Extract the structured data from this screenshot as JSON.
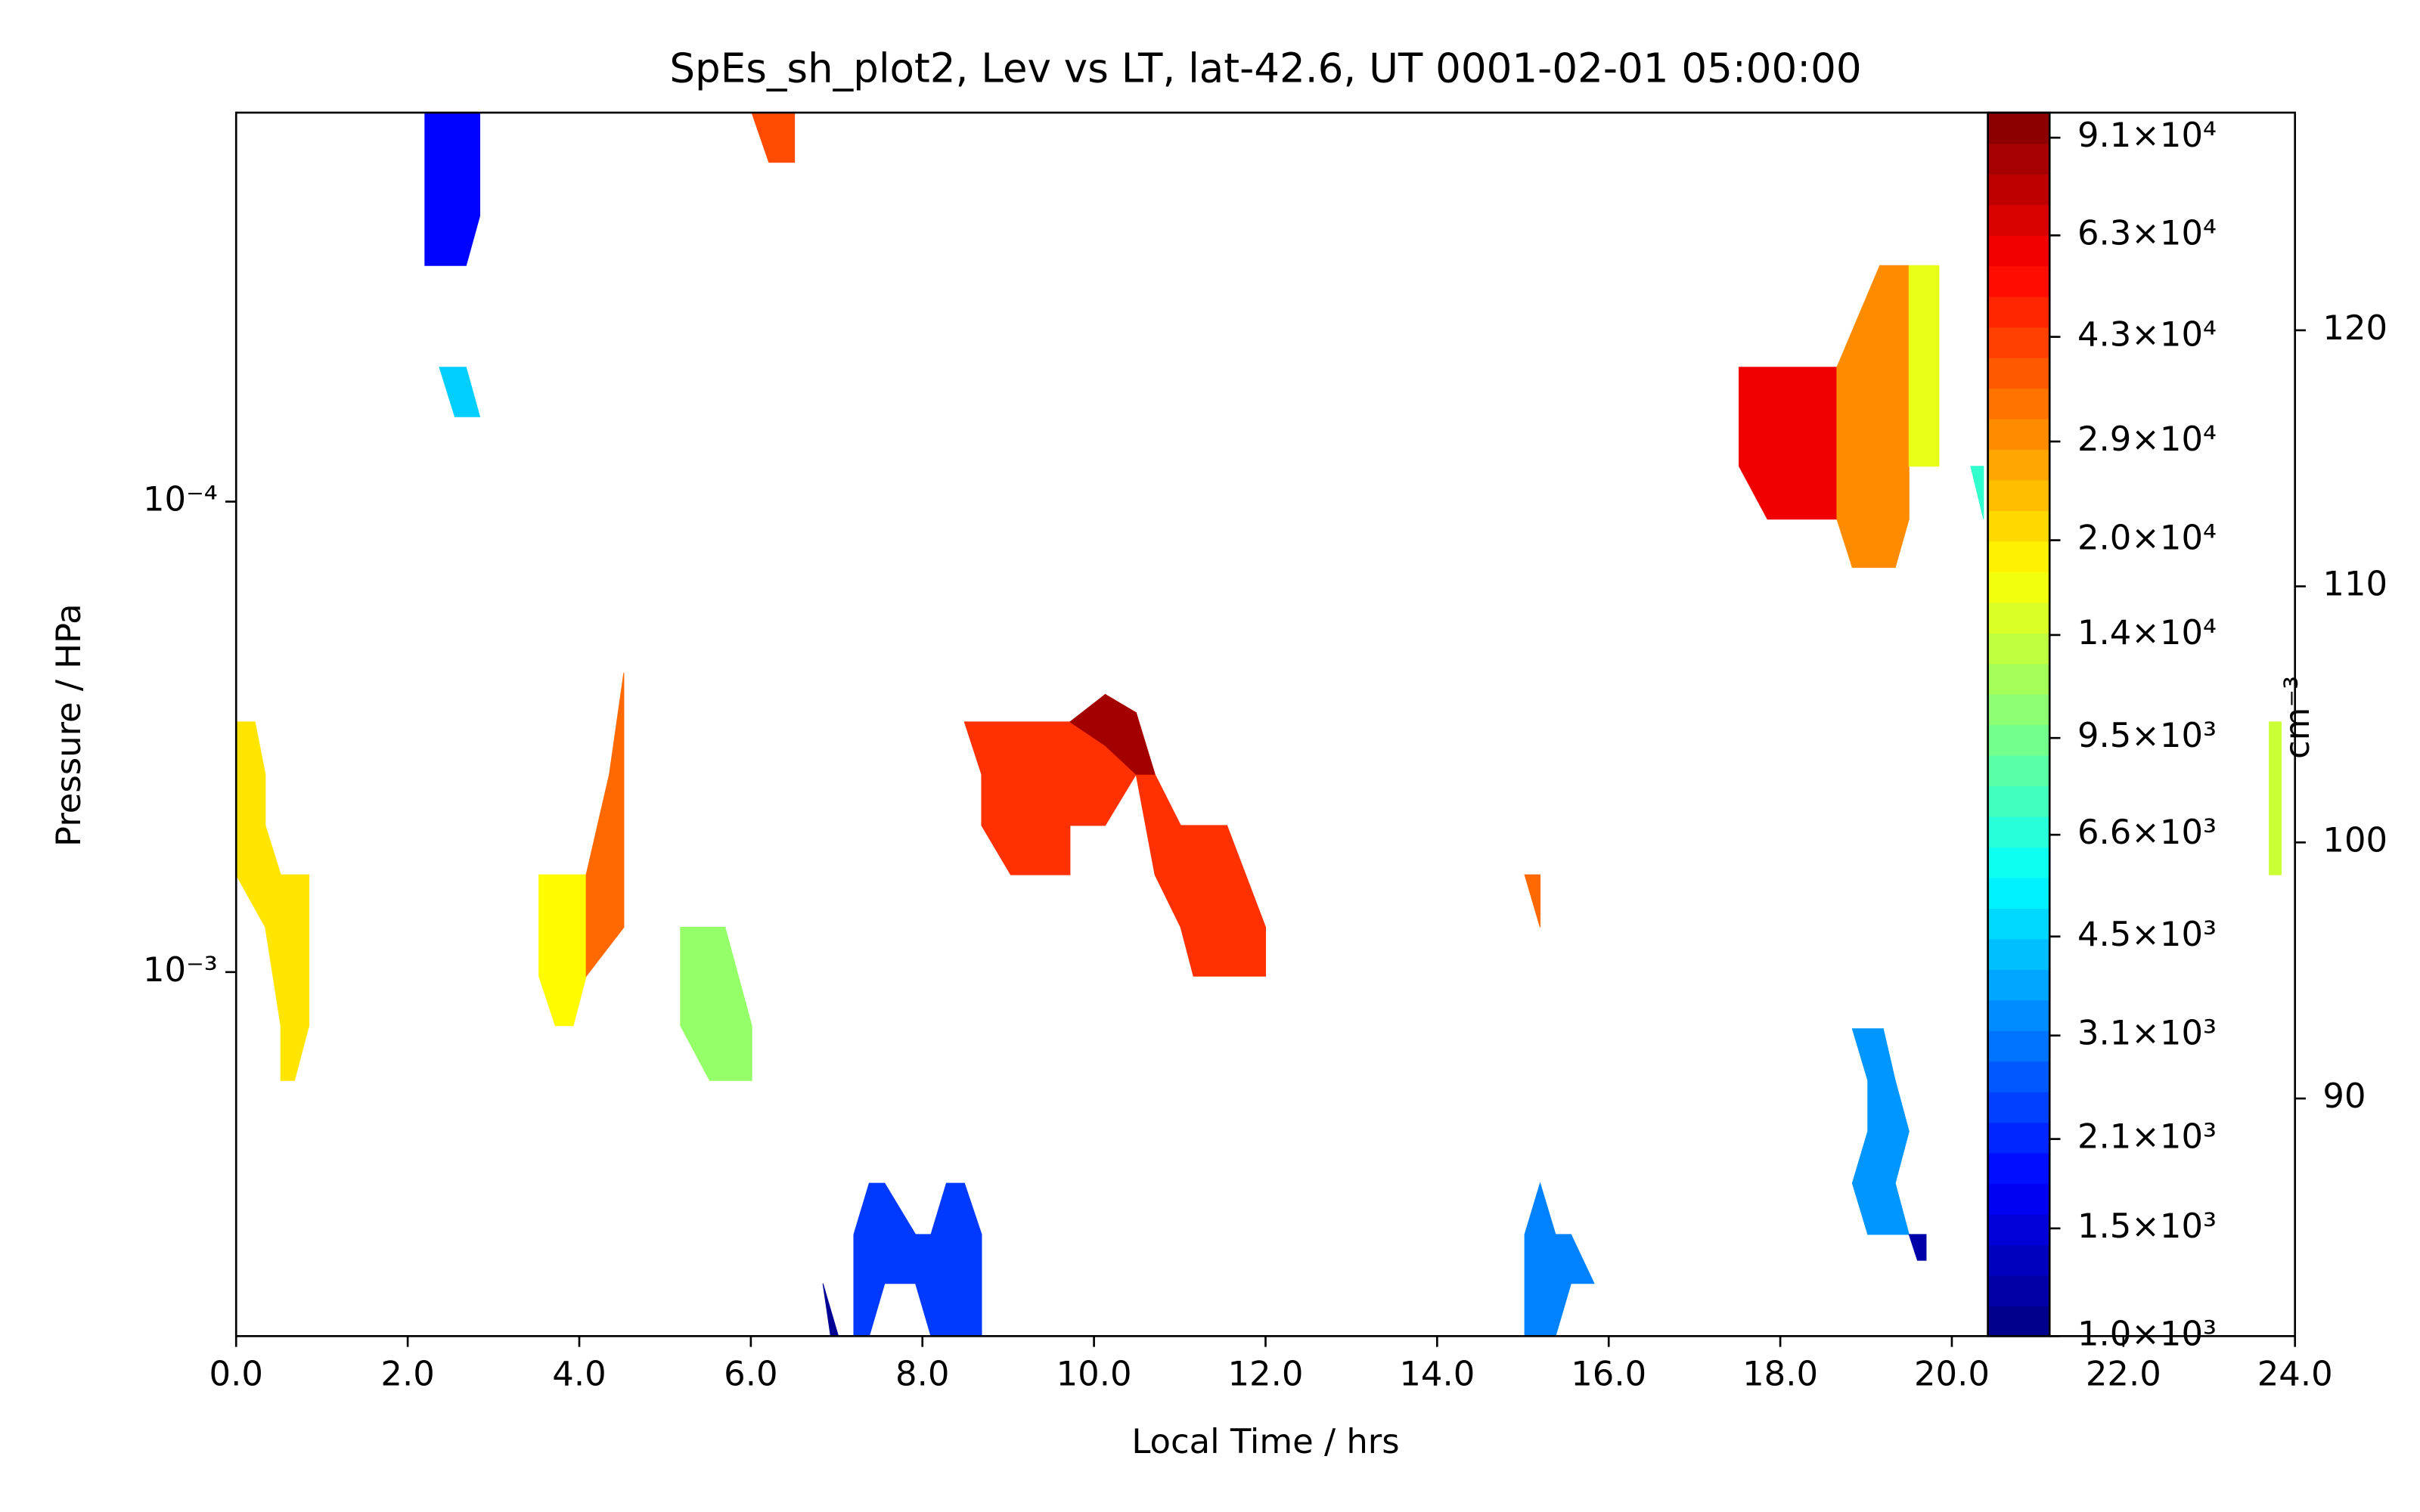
{
  "chart_data": {
    "type": "contour",
    "title": "SpEs_sh_plot2, Lev vs LT, lat-42.6, UT 0001-02-01 05:00:00",
    "xlabel": "Local Time / hrs",
    "ylabel": "Pressure / HPa",
    "colorbar_label": "cm⁻³",
    "xlim": [
      0,
      24
    ],
    "xticks": [
      {
        "value": 0,
        "label": "0.0"
      },
      {
        "value": 2,
        "label": "2.0"
      },
      {
        "value": 4,
        "label": "4.0"
      },
      {
        "value": 6,
        "label": "6.0"
      },
      {
        "value": 8,
        "label": "8.0"
      },
      {
        "value": 10,
        "label": "10.0"
      },
      {
        "value": 12,
        "label": "12.0"
      },
      {
        "value": 14,
        "label": "14.0"
      },
      {
        "value": 16,
        "label": "16.0"
      },
      {
        "value": 18,
        "label": "18.0"
      },
      {
        "value": 20,
        "label": "20.0"
      },
      {
        "value": 22,
        "label": "22.0"
      },
      {
        "value": 24,
        "label": "24.0"
      }
    ],
    "ylim": [
      0.00594,
      1.49e-05
    ],
    "log_y": true,
    "yticks": [
      {
        "value": 0.0001,
        "label": "10⁻⁴"
      },
      {
        "value": 0.001,
        "label": "10⁻³"
      }
    ],
    "y2lim": [
      80.72,
      128.5
    ],
    "y2ticks": [
      90,
      100,
      110,
      120
    ],
    "clim": [
      1000,
      100000
    ],
    "colormap": "jet",
    "cticks": [
      {
        "value": 1000,
        "label": "1.0×10³"
      },
      {
        "value": 1500,
        "label": "1.5×10³"
      },
      {
        "value": 2100,
        "label": "2.1×10³"
      },
      {
        "value": 3100,
        "label": "3.1×10³"
      },
      {
        "value": 4500,
        "label": "4.5×10³"
      },
      {
        "value": 6600,
        "label": "6.6×10³"
      },
      {
        "value": 9500,
        "label": "9.5×10³"
      },
      {
        "value": 14000,
        "label": "1.4×10⁴"
      },
      {
        "value": 20000,
        "label": "2.0×10⁴"
      },
      {
        "value": 29000,
        "label": "2.9×10⁴"
      },
      {
        "value": 43000,
        "label": "4.3×10⁴"
      },
      {
        "value": 63000,
        "label": "6.3×10⁴"
      },
      {
        "value": 91000,
        "label": "9.1×10⁴"
      }
    ],
    "regions": [
      {
        "value": 1800,
        "points": [
          [
            2.2,
            1.49e-05
          ],
          [
            2.84,
            1.49e-05
          ],
          [
            2.84,
            2.47e-05
          ],
          [
            2.68,
            3.15e-05
          ],
          [
            2.2,
            3.15e-05
          ]
        ]
      },
      {
        "value": 40000,
        "points": [
          [
            6.01,
            1.49e-05
          ],
          [
            6.51,
            1.49e-05
          ],
          [
            6.51,
            1.9e-05
          ],
          [
            6.21,
            1.9e-05
          ]
        ]
      },
      {
        "value": 4500,
        "points": [
          [
            2.37,
            5.18e-05
          ],
          [
            2.68,
            5.18e-05
          ],
          [
            2.84,
            6.6e-05
          ],
          [
            2.55,
            6.6e-05
          ]
        ]
      },
      {
        "value": 60000,
        "points": [
          [
            17.52,
            5.18e-05
          ],
          [
            18.66,
            5.18e-05
          ],
          [
            18.66,
            0.000109
          ],
          [
            17.85,
            0.000109
          ],
          [
            17.52,
            8.41e-05
          ]
        ]
      },
      {
        "value": 30000,
        "points": [
          [
            18.66,
            5.18e-05
          ],
          [
            19.16,
            3.15e-05
          ],
          [
            19.5,
            3.15e-05
          ],
          [
            19.5,
            0.000109
          ],
          [
            19.34,
            0.000138
          ],
          [
            18.84,
            0.000138
          ],
          [
            18.66,
            0.000109
          ]
        ]
      },
      {
        "value": 16000,
        "points": [
          [
            19.5,
            3.15e-05
          ],
          [
            19.85,
            3.15e-05
          ],
          [
            19.85,
            8.41e-05
          ],
          [
            19.5,
            8.41e-05
          ]
        ]
      },
      {
        "value": 7000,
        "points": [
          [
            20.22,
            8.41e-05
          ],
          [
            20.37,
            8.41e-05
          ],
          [
            20.37,
            0.000109
          ]
        ]
      },
      {
        "value": 20000,
        "points": [
          [
            0,
            0.000294
          ],
          [
            0.22,
            0.000294
          ],
          [
            0.34,
            0.00038
          ],
          [
            0.34,
            0.000488
          ],
          [
            0.52,
            0.000621
          ],
          [
            0.85,
            0.000621
          ],
          [
            0.85,
            0.0013
          ],
          [
            0.68,
            0.0017
          ],
          [
            0.52,
            0.0017
          ],
          [
            0.52,
            0.0013
          ],
          [
            0.34,
            0.000803
          ],
          [
            0,
            0.000621
          ]
        ]
      },
      {
        "value": 18000,
        "points": [
          [
            3.53,
            0.000621
          ],
          [
            4.08,
            0.000621
          ],
          [
            4.08,
            0.00102
          ],
          [
            3.93,
            0.0013
          ],
          [
            3.72,
            0.0013
          ],
          [
            3.53,
            0.00102
          ]
        ]
      },
      {
        "value": 35000,
        "points": [
          [
            4.08,
            0.000621
          ],
          [
            4.35,
            0.00038
          ],
          [
            4.52,
            0.000231
          ],
          [
            4.52,
            0.000803
          ],
          [
            4.08,
            0.00102
          ]
        ]
      },
      {
        "value": 11000,
        "points": [
          [
            5.18,
            0.000803
          ],
          [
            5.7,
            0.000803
          ],
          [
            6.01,
            0.0013
          ],
          [
            6.01,
            0.0017
          ],
          [
            5.52,
            0.0017
          ],
          [
            5.18,
            0.0013
          ]
        ]
      },
      {
        "value": 45000,
        "points": [
          [
            8.49,
            0.000294
          ],
          [
            9.84,
            0.000294
          ],
          [
            10.13,
            0.000257
          ],
          [
            10.49,
            0.000281
          ],
          [
            10.71,
            0.00038
          ],
          [
            11.01,
            0.000488
          ],
          [
            11.26,
            0.000488
          ],
          [
            11.55,
            0.000488
          ],
          [
            12.0,
            0.000803
          ],
          [
            12.0,
            0.00102
          ],
          [
            11.16,
            0.00102
          ],
          [
            11.01,
            0.000803
          ],
          [
            10.71,
            0.000621
          ],
          [
            10.49,
            0.00038
          ],
          [
            10.13,
            0.000488
          ],
          [
            9.72,
            0.000488
          ],
          [
            9.72,
            0.000621
          ],
          [
            9.03,
            0.000621
          ],
          [
            8.69,
            0.000488
          ],
          [
            8.69,
            0.00038
          ]
        ]
      },
      {
        "value": 85000,
        "points": [
          [
            9.72,
            0.000294
          ],
          [
            10.13,
            0.000257
          ],
          [
            10.49,
            0.000281
          ],
          [
            10.71,
            0.00038
          ],
          [
            10.49,
            0.00038
          ],
          [
            10.13,
            0.00033
          ]
        ]
      },
      {
        "value": 35000,
        "points": [
          [
            15.02,
            0.000621
          ],
          [
            15.2,
            0.000621
          ],
          [
            15.2,
            0.000803
          ]
        ]
      },
      {
        "value": 2300,
        "points": [
          [
            7.2,
            0.00361
          ],
          [
            7.38,
            0.00281
          ],
          [
            7.56,
            0.00281
          ],
          [
            7.92,
            0.00361
          ],
          [
            8.1,
            0.00361
          ],
          [
            8.28,
            0.00281
          ],
          [
            8.49,
            0.00281
          ],
          [
            8.69,
            0.00361
          ],
          [
            8.69,
            0.00594
          ],
          [
            8.1,
            0.00594
          ],
          [
            7.92,
            0.00459
          ],
          [
            7.56,
            0.00459
          ],
          [
            7.38,
            0.00594
          ],
          [
            7.2,
            0.00594
          ]
        ]
      },
      {
        "value": 1100,
        "points": [
          [
            6.84,
            0.00459
          ],
          [
            7.02,
            0.00594
          ],
          [
            6.93,
            0.00594
          ]
        ]
      },
      {
        "value": 3200,
        "points": [
          [
            15.02,
            0.00361
          ],
          [
            15.2,
            0.00281
          ],
          [
            15.38,
            0.00361
          ],
          [
            15.56,
            0.00361
          ],
          [
            15.83,
            0.00459
          ],
          [
            15.56,
            0.00459
          ],
          [
            15.38,
            0.00594
          ],
          [
            15.02,
            0.00594
          ]
        ]
      },
      {
        "value": 3500,
        "points": [
          [
            18.84,
            0.00132
          ],
          [
            19.2,
            0.00132
          ],
          [
            19.34,
            0.0017
          ],
          [
            19.5,
            0.00218
          ],
          [
            19.34,
            0.00281
          ],
          [
            19.5,
            0.00361
          ],
          [
            19.02,
            0.00361
          ],
          [
            18.84,
            0.00281
          ],
          [
            19.02,
            0.00218
          ],
          [
            19.02,
            0.0017
          ]
        ]
      },
      {
        "value": 1200,
        "points": [
          [
            19.5,
            0.00361
          ],
          [
            19.7,
            0.00361
          ],
          [
            19.7,
            0.0041
          ],
          [
            19.6,
            0.0041
          ]
        ]
      },
      {
        "value": 14000,
        "points": [
          [
            23.7,
            0.000294
          ],
          [
            23.84,
            0.000294
          ],
          [
            23.84,
            0.000621
          ],
          [
            23.7,
            0.000621
          ]
        ]
      }
    ]
  }
}
